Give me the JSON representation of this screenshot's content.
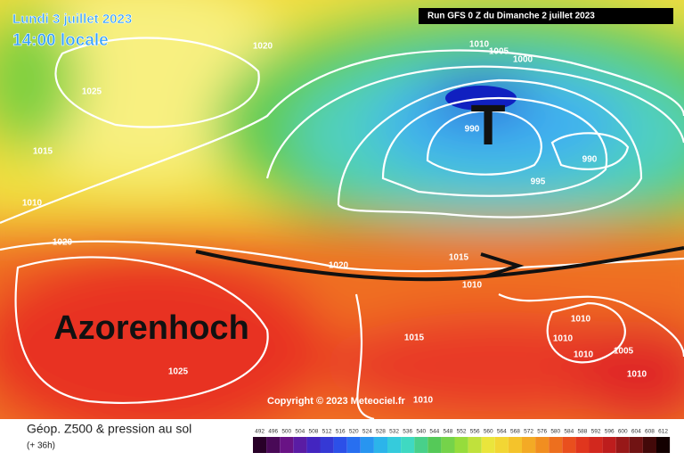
{
  "header": {
    "date": "Lundi 3 juillet 2023",
    "time": "14:00 locale",
    "run": "Run GFS 0 Z du Dimanche 2 juillet 2023"
  },
  "map": {
    "low_label": "T",
    "high_label": "Azorenhoch",
    "copyright": "Copyright © 2023 Meteociel.fr",
    "isobar_labels": [
      "1020",
      "1025",
      "1015",
      "1010",
      "1020",
      "1010",
      "1005",
      "1000",
      "990",
      "990",
      "995",
      "1020",
      "1015",
      "1010",
      "1015",
      "1025",
      "1010",
      "1010",
      "1005",
      "1010",
      "1010",
      "1010"
    ]
  },
  "legend": {
    "title": "Géop. Z500 & pression au sol",
    "lead": "(+ 36h)",
    "scale": [
      492,
      496,
      500,
      504,
      508,
      512,
      516,
      520,
      524,
      528,
      532,
      536,
      540,
      544,
      548,
      552,
      556,
      560,
      564,
      568,
      572,
      576,
      580,
      584,
      588,
      592,
      596,
      600,
      604,
      608,
      612
    ]
  }
}
